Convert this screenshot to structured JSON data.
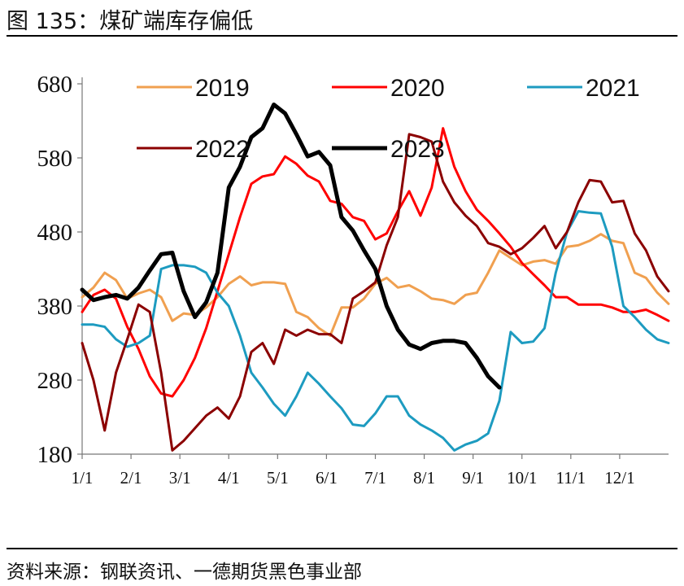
{
  "figure": {
    "title": "图 135：煤矿端库存偏低",
    "source": "资料来源：钢联资讯、一德期货黑色事业部"
  },
  "chart_data": {
    "type": "line",
    "title": "煤矿端库存偏低",
    "xlabel": "",
    "ylabel": "",
    "ylim": [
      180,
      680
    ],
    "yticks": [
      180,
      280,
      380,
      480,
      580,
      680
    ],
    "x_tick_labels": [
      "1/1",
      "2/1",
      "3/1",
      "4/1",
      "5/1",
      "6/1",
      "7/1",
      "8/1",
      "9/1",
      "10/1",
      "11/1",
      "12/1"
    ],
    "x_domain_weeks": [
      0,
      52
    ],
    "legend_position": "top",
    "series": [
      {
        "name": "2019",
        "color": "#F0A050",
        "width": 3,
        "x": [
          0,
          1,
          2,
          3,
          4,
          5,
          6,
          7,
          8,
          9,
          10,
          11,
          12,
          13,
          14,
          15,
          16,
          17,
          18,
          19,
          20,
          21,
          22,
          23,
          24,
          25,
          26,
          27,
          28,
          29,
          30,
          31,
          32,
          33,
          34,
          35,
          36,
          37,
          38,
          39,
          40,
          41,
          42,
          43,
          44,
          45,
          46,
          47,
          48,
          49,
          50,
          51,
          52
        ],
        "values": [
          392,
          405,
          425,
          415,
          390,
          397,
          402,
          392,
          360,
          370,
          368,
          378,
          392,
          410,
          420,
          408,
          412,
          412,
          410,
          372,
          365,
          350,
          340,
          378,
          378,
          390,
          410,
          418,
          405,
          408,
          400,
          390,
          388,
          383,
          395,
          398,
          425,
          455,
          445,
          435,
          440,
          442,
          437,
          460,
          462,
          468,
          477,
          468,
          465,
          425,
          418,
          398,
          383
        ]
      },
      {
        "name": "2020",
        "color": "#FF0000",
        "width": 3,
        "x": [
          0,
          1,
          2,
          3,
          4,
          5,
          6,
          7,
          8,
          9,
          10,
          11,
          12,
          13,
          14,
          15,
          16,
          17,
          18,
          19,
          20,
          21,
          22,
          23,
          24,
          25,
          26,
          27,
          28,
          29,
          30,
          31,
          32,
          33,
          34,
          35,
          36,
          37,
          38,
          39,
          40,
          41,
          42,
          43,
          44,
          45,
          46,
          47,
          48,
          49,
          50,
          51,
          52
        ],
        "values": [
          372,
          395,
          402,
          390,
          352,
          322,
          285,
          262,
          258,
          280,
          310,
          350,
          400,
          450,
          500,
          545,
          555,
          558,
          582,
          572,
          556,
          548,
          522,
          518,
          500,
          495,
          470,
          478,
          508,
          535,
          502,
          540,
          620,
          568,
          535,
          510,
          495,
          478,
          460,
          438,
          423,
          408,
          392,
          392,
          382,
          382,
          382,
          378,
          372,
          372,
          375,
          368,
          360
        ]
      },
      {
        "name": "2021",
        "color": "#1D9BC0",
        "width": 3,
        "x": [
          0,
          1,
          2,
          3,
          4,
          5,
          6,
          7,
          8,
          9,
          10,
          11,
          12,
          13,
          14,
          15,
          16,
          17,
          18,
          19,
          20,
          21,
          22,
          23,
          24,
          25,
          26,
          27,
          28,
          29,
          30,
          31,
          32,
          33,
          34,
          35,
          36,
          37,
          38,
          39,
          40,
          41,
          42,
          43,
          44,
          45,
          46,
          47,
          48,
          49,
          50,
          51,
          52
        ],
        "values": [
          355,
          355,
          352,
          335,
          325,
          330,
          340,
          430,
          435,
          435,
          433,
          425,
          398,
          380,
          340,
          290,
          270,
          248,
          232,
          258,
          290,
          275,
          258,
          242,
          220,
          218,
          235,
          258,
          258,
          232,
          220,
          212,
          202,
          185,
          193,
          198,
          208,
          252,
          345,
          330,
          332,
          350,
          425,
          480,
          508,
          506,
          505,
          460,
          380,
          365,
          348,
          335,
          330
        ]
      },
      {
        "name": "2022",
        "color": "#8B0000",
        "width": 3,
        "x": [
          0,
          1,
          2,
          3,
          4,
          5,
          6,
          7,
          8,
          9,
          10,
          11,
          12,
          13,
          14,
          15,
          16,
          17,
          18,
          19,
          20,
          21,
          22,
          23,
          24,
          25,
          26,
          27,
          28,
          29,
          30,
          31,
          32,
          33,
          34,
          35,
          36,
          37,
          38,
          39,
          40,
          41,
          42,
          43,
          44,
          45,
          46,
          47,
          48,
          49,
          50,
          51,
          52
        ],
        "values": [
          330,
          280,
          212,
          290,
          335,
          382,
          372,
          290,
          185,
          198,
          215,
          232,
          243,
          228,
          258,
          318,
          330,
          302,
          348,
          340,
          348,
          342,
          342,
          330,
          390,
          400,
          412,
          462,
          500,
          612,
          608,
          602,
          548,
          520,
          502,
          488,
          465,
          460,
          450,
          458,
          472,
          488,
          458,
          480,
          520,
          550,
          548,
          520,
          522,
          478,
          455,
          420,
          400
        ]
      },
      {
        "name": "2023",
        "color": "#000000",
        "width": 5,
        "x": [
          0,
          1,
          2,
          3,
          4,
          5,
          6,
          7,
          8,
          9,
          10,
          11,
          12,
          13,
          14,
          15,
          16,
          17,
          18,
          19,
          20,
          21,
          22,
          23,
          24,
          25,
          26,
          27,
          28,
          29,
          30,
          31,
          32,
          33,
          34,
          35,
          36,
          37
        ],
        "values": [
          402,
          388,
          392,
          395,
          390,
          405,
          428,
          450,
          452,
          400,
          365,
          385,
          425,
          540,
          568,
          608,
          620,
          652,
          640,
          612,
          582,
          588,
          570,
          500,
          482,
          455,
          430,
          380,
          348,
          328,
          322,
          330,
          333,
          333,
          330,
          310,
          285,
          270
        ]
      }
    ]
  }
}
